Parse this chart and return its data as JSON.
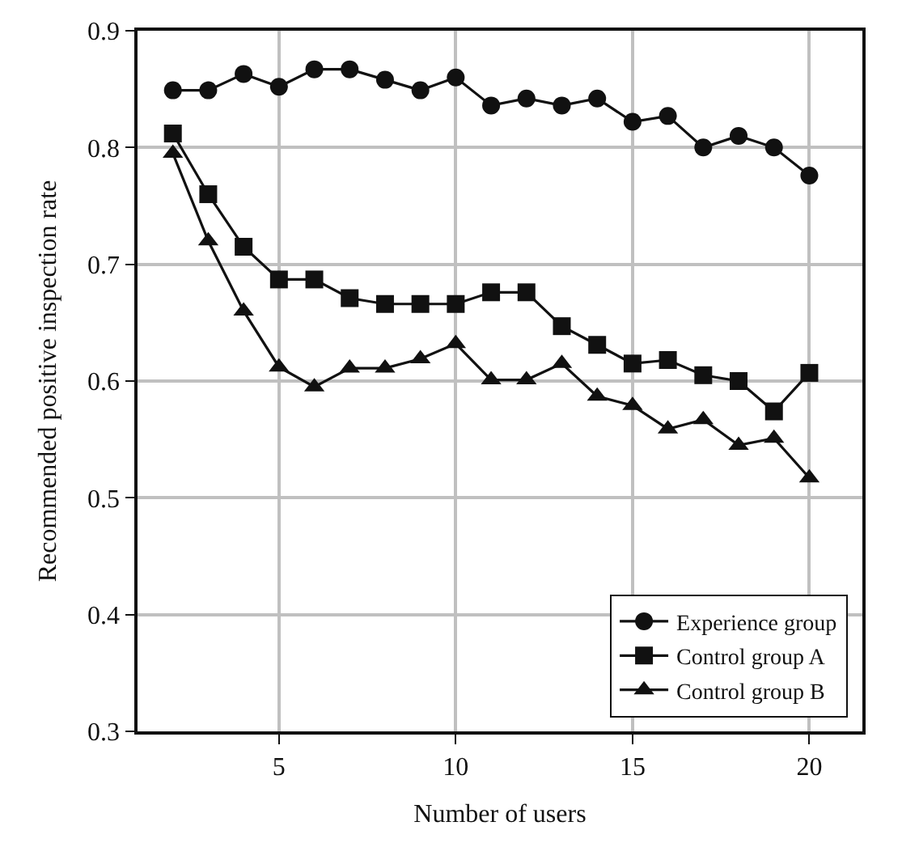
{
  "chart_data": {
    "type": "line",
    "xlabel": "Number of users",
    "ylabel": "Recommended positive inspection rate",
    "x": [
      2,
      3,
      4,
      5,
      6,
      7,
      8,
      9,
      10,
      11,
      12,
      13,
      14,
      15,
      16,
      17,
      18,
      19,
      20
    ],
    "series": [
      {
        "name": "Experience group",
        "color": "#111111",
        "marker": "circle",
        "values": [
          0.849,
          0.849,
          0.863,
          0.852,
          0.867,
          0.867,
          0.858,
          0.849,
          0.86,
          0.836,
          0.842,
          0.836,
          0.842,
          0.822,
          0.827,
          0.8,
          0.81,
          0.8,
          0.776
        ]
      },
      {
        "name": "Control group A",
        "color": "#111111",
        "marker": "square",
        "values": [
          0.812,
          0.76,
          0.715,
          0.687,
          0.687,
          0.671,
          0.666,
          0.666,
          0.666,
          0.676,
          0.676,
          0.647,
          0.631,
          0.615,
          0.618,
          0.605,
          0.6,
          0.574,
          0.607
        ]
      },
      {
        "name": "Control group B",
        "color": "#111111",
        "marker": "triangle",
        "values": [
          0.795,
          0.72,
          0.66,
          0.612,
          0.595,
          0.611,
          0.611,
          0.619,
          0.632,
          0.601,
          0.601,
          0.615,
          0.587,
          0.579,
          0.559,
          0.567,
          0.545,
          0.551,
          0.517
        ]
      }
    ],
    "xlim": [
      1,
      21.5
    ],
    "xticks": [
      5,
      10,
      15,
      20
    ],
    "ylim": [
      0.3,
      0.9
    ],
    "yticks": [
      0.3,
      0.4,
      0.5,
      0.6,
      0.7,
      0.8,
      0.9
    ],
    "grid": true,
    "legend": "bottom right",
    "line_style": "solid"
  }
}
